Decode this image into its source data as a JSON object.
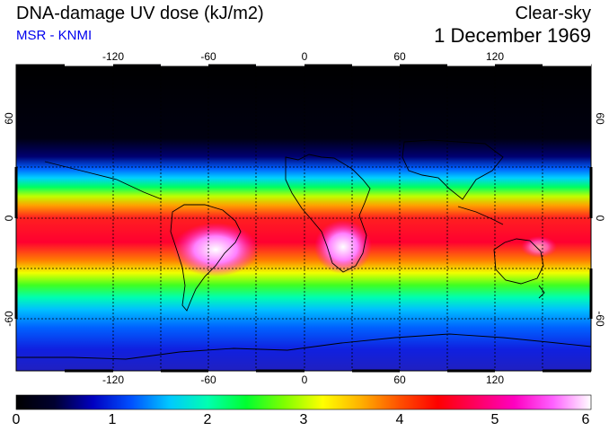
{
  "header": {
    "title": "DNA-damage UV dose (kJ/m2)",
    "subtitle": "MSR - KNMI",
    "sky_condition": "Clear-sky",
    "date": "1 December 1969"
  },
  "map": {
    "lon_ticks": [
      "-120",
      "-60",
      "0",
      "60",
      "120"
    ],
    "lat_ticks_left": [
      "60",
      "0",
      "-60"
    ],
    "lat_ticks_right": [
      "60",
      "0",
      "-60"
    ]
  },
  "colorbar": {
    "labels": [
      "0",
      "1",
      "2",
      "3",
      "4",
      "5",
      "6"
    ],
    "colors": [
      "#000000",
      "#000030",
      "#0000c0",
      "#0050ff",
      "#00c8ff",
      "#00ffb0",
      "#00ff30",
      "#80ff00",
      "#ffff00",
      "#ffb000",
      "#ff5000",
      "#ff0000",
      "#ff0060",
      "#ff00c0",
      "#ff60ff",
      "#ffffff"
    ]
  }
}
